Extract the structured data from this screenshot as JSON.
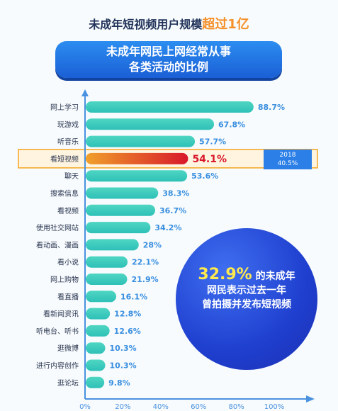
{
  "headline": {
    "text": "未成年短视频用户规模",
    "highlight": "超过1亿"
  },
  "banner": {
    "line1": "未成年网民上网经常从事",
    "line2": "各类活动的比例"
  },
  "compare_badge": {
    "year": "2018",
    "value": "40.5%"
  },
  "stat_circle": {
    "percent": "32.9%",
    "line1_suffix": "的未成年",
    "line2": "网民表示过去一年",
    "line3": "曾拍摄并发布短视频"
  },
  "colors": {
    "bar_top": "#4fd6c3",
    "bar_bottom": "#2ec0b7",
    "highlight_start": "#f0a02a",
    "highlight_end": "#d8182a",
    "highlight_box": "#f5a623",
    "axis": "#4a92e0",
    "value_text": "#3a8fe0"
  },
  "chart_data": {
    "type": "bar",
    "orientation": "horizontal",
    "categories": [
      "网上学习",
      "玩游戏",
      "听音乐",
      "看短视频",
      "聊天",
      "搜索信息",
      "看视频",
      "使用社交网站",
      "看动画、漫画",
      "看小说",
      "网上购物",
      "看直播",
      "看新闻资讯",
      "听电台、听书",
      "逛微博",
      "进行内容创作",
      "逛论坛"
    ],
    "values": [
      88.7,
      67.8,
      57.7,
      54.1,
      53.6,
      38.3,
      36.7,
      34.2,
      28,
      22.1,
      21.9,
      16.1,
      12.8,
      12.6,
      10.3,
      10.3,
      9.8
    ],
    "value_labels": [
      "88.7%",
      "67.8%",
      "57.7%",
      "54.1%",
      "53.6%",
      "38.3%",
      "36.7%",
      "34.2%",
      "28%",
      "22.1%",
      "21.9%",
      "16.1%",
      "12.8%",
      "12.6%",
      "10.3%",
      "10.3%",
      "9.8%"
    ],
    "highlight_index": 3,
    "xlim": [
      0,
      100
    ],
    "x_ticks": [
      "0%",
      "20%",
      "40%",
      "60%",
      "80%",
      "100%"
    ],
    "grid": false,
    "legend": "none"
  }
}
